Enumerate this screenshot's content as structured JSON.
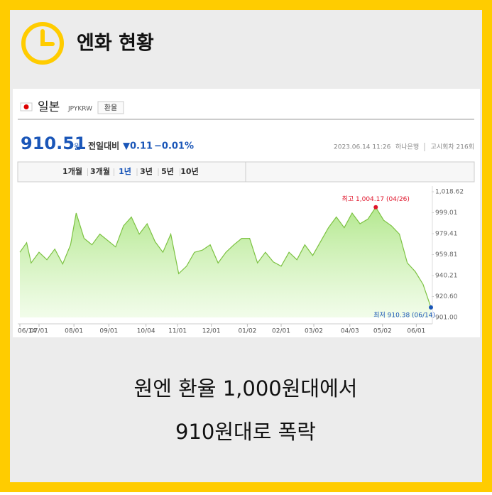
{
  "header": {
    "title": "엔화 현황"
  },
  "widget": {
    "country": "일본",
    "code": "JPYKRW",
    "button": "환율",
    "price": 910.51,
    "price_unit": "원",
    "change_label": "전일대비",
    "change": "▼0.11",
    "change_pct": "−0.01%",
    "timestamp": "2023.06.14 11:26",
    "bank": "하나은행",
    "round": "고시회차 216회",
    "tabs": [
      "1개월",
      "3개월",
      "1년",
      "3년",
      "5년",
      "10년"
    ],
    "active_tab": 2
  },
  "chart_data": {
    "type": "area",
    "x": [
      "06/14",
      "06/20",
      "06/24",
      "07/01",
      "07/08",
      "07/15",
      "07/22",
      "07/29",
      "08/03",
      "08/10",
      "08/17",
      "08/24",
      "08/31",
      "09/07",
      "09/14",
      "09/21",
      "09/28",
      "10/05",
      "10/12",
      "10/19",
      "10/26",
      "11/02",
      "11/09",
      "11/16",
      "11/23",
      "11/30",
      "12/07",
      "12/14",
      "12/21",
      "12/28",
      "01/04",
      "01/11",
      "01/18",
      "01/25",
      "02/01",
      "02/08",
      "02/15",
      "02/22",
      "03/01",
      "03/08",
      "03/15",
      "03/22",
      "03/29",
      "04/05",
      "04/12",
      "04/19",
      "04/26",
      "05/03",
      "05/10",
      "05/17",
      "05/24",
      "05/31",
      "06/07",
      "06/14"
    ],
    "series": [
      {
        "name": "JPYKRW",
        "color": "#7cc242",
        "values": [
          962,
          971,
          952,
          962,
          955,
          965,
          951,
          969,
          998.7,
          975,
          969,
          979,
          973,
          967,
          986.7,
          995,
          979,
          988.7,
          972,
          962,
          979,
          942,
          949,
          962,
          964,
          969,
          952,
          962,
          969,
          975,
          975,
          952,
          962,
          953,
          949,
          962,
          955,
          969,
          959,
          972,
          985,
          995,
          985,
          998.7,
          988.7,
          993,
          1004.17,
          992,
          986.7,
          979,
          952,
          944,
          932,
          910.38
        ]
      }
    ],
    "annotations": [
      {
        "text": "최고 1,004.17 (04/26)",
        "color": "#e0142a"
      },
      {
        "text": "최저 910.38 (06/14)",
        "color": "#1a56b8"
      }
    ],
    "ylim": [
      901.0,
      1018.62
    ],
    "yticks": [
      {
        "value": 1018.62,
        "label": "1,018.62"
      },
      999.01,
      979.41,
      959.81,
      940.21,
      {
        "value": 920.6,
        "label": "920.60"
      },
      {
        "value": 901.0,
        "label": "901.00"
      }
    ],
    "xticks": [
      "06/14",
      "07/01",
      "08/01",
      "09/01",
      "10/04",
      "11/01",
      "12/01",
      "01/02",
      "02/01",
      "03/02",
      "04/03",
      "05/02",
      "06/01"
    ]
  },
  "caption": {
    "line1": "원엔 환율 1,000원대에서",
    "line2": "910원대로 폭락"
  }
}
